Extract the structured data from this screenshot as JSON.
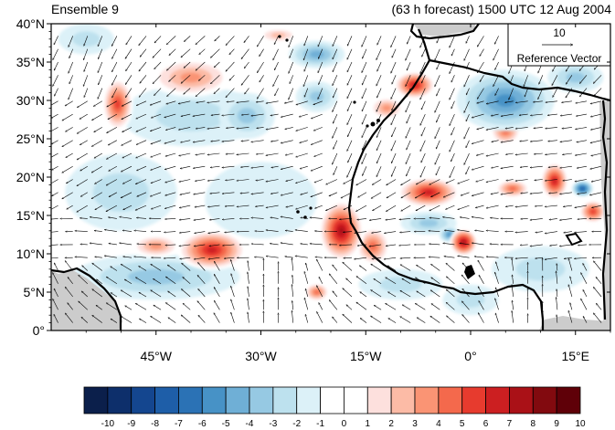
{
  "header": {
    "left_title": "Ensemble 9",
    "right_title": "(63 h forecast) 1500 UTC 12 Aug 2004"
  },
  "map": {
    "lon_range": [
      -60,
      20
    ],
    "lat_range": [
      0,
      40
    ],
    "lat_ticks": [
      {
        "value": 0,
        "label": "0°"
      },
      {
        "value": 5,
        "label": "5°N"
      },
      {
        "value": 10,
        "label": "10°N"
      },
      {
        "value": 15,
        "label": "15°N"
      },
      {
        "value": 20,
        "label": "20°N"
      },
      {
        "value": 25,
        "label": "25°N"
      },
      {
        "value": 30,
        "label": "30°N"
      },
      {
        "value": 35,
        "label": "35°N"
      },
      {
        "value": 40,
        "label": "40°N"
      }
    ],
    "lon_ticks": [
      {
        "value": -45,
        "label": "45°W"
      },
      {
        "value": -30,
        "label": "30°W"
      },
      {
        "value": -15,
        "label": "15°W"
      },
      {
        "value": 0,
        "label": "0°"
      },
      {
        "value": 15,
        "label": "15°E"
      }
    ],
    "reference_vector": {
      "magnitude": "10",
      "label": "Reference Vector"
    },
    "colors": {
      "land_masked": "#cccccc",
      "coast": "#000000",
      "vector": "#000000"
    }
  },
  "colorbar": {
    "levels": [
      "-10",
      "-9",
      "-8",
      "-7",
      "-6",
      "-5",
      "-4",
      "-3",
      "-2",
      "-1",
      "0",
      "1",
      "2",
      "3",
      "4",
      "5",
      "6",
      "7",
      "8",
      "9",
      "10"
    ],
    "colors": [
      "#0b1f4b",
      "#0d2f6b",
      "#14468f",
      "#1e5ea8",
      "#2b72b5",
      "#4792c6",
      "#6fafd6",
      "#96c9e3",
      "#bde1ee",
      "#dcf1f8",
      "#ffffff",
      "#ffffff",
      "#fde0dd",
      "#fcbba6",
      "#fa9474",
      "#f4694c",
      "#e73b2e",
      "#cc1f21",
      "#aa1117",
      "#820a0f",
      "#5f0008"
    ]
  },
  "field": {
    "blobs": [
      {
        "lon": -50.5,
        "lat": 29.5,
        "rlon": 2.2,
        "rlat": 3.5,
        "v": 6
      },
      {
        "lon": -40,
        "lat": 33,
        "rlon": 6,
        "rlat": 2.5,
        "v": 4
      },
      {
        "lon": -37,
        "lat": 10.5,
        "rlon": 5,
        "rlat": 2.6,
        "v": 7
      },
      {
        "lon": -45,
        "lat": 11,
        "rlon": 3.5,
        "rlat": 1.5,
        "v": 4
      },
      {
        "lon": -18.5,
        "lat": 13,
        "rlon": 3.2,
        "rlat": 4,
        "v": 8
      },
      {
        "lon": -14,
        "lat": 11,
        "rlon": 2.5,
        "rlat": 2.5,
        "v": 5
      },
      {
        "lon": -22,
        "lat": 5,
        "rlon": 1.8,
        "rlat": 1.2,
        "v": 5
      },
      {
        "lon": -8,
        "lat": 32,
        "rlon": 3,
        "rlat": 1.8,
        "v": 7
      },
      {
        "lon": -12,
        "lat": 29,
        "rlon": 2.5,
        "rlat": 1.5,
        "v": 4
      },
      {
        "lon": -6,
        "lat": 18,
        "rlon": 4.5,
        "rlat": 2,
        "v": 7
      },
      {
        "lon": -1,
        "lat": 11.5,
        "rlon": 2,
        "rlat": 1.8,
        "v": 8
      },
      {
        "lon": 5,
        "lat": 26,
        "rlon": 2.2,
        "rlat": 1.8,
        "v": 5
      },
      {
        "lon": 6,
        "lat": 18.5,
        "rlon": 2.5,
        "rlat": 1.2,
        "v": 5
      },
      {
        "lon": 12,
        "lat": 19.5,
        "rlon": 2,
        "rlat": 2.5,
        "v": 7
      },
      {
        "lon": 17.5,
        "lat": 15.5,
        "rlon": 2,
        "rlat": 1.5,
        "v": 6
      },
      {
        "lon": -27.5,
        "lat": 38.5,
        "rlon": 3,
        "rlat": 1,
        "v": 3
      },
      {
        "lon": 5,
        "lat": 30,
        "rlon": 7,
        "rlat": 4,
        "v": -5
      },
      {
        "lon": -22,
        "lat": 36,
        "rlon": 4,
        "rlat": 1.8,
        "v": -4
      },
      {
        "lon": -40,
        "lat": 28,
        "rlon": 10,
        "rlat": 4,
        "v": -2
      },
      {
        "lon": -32,
        "lat": 28,
        "rlon": 4,
        "rlat": 3,
        "v": -3
      },
      {
        "lon": -22,
        "lat": 30.5,
        "rlon": 3,
        "rlat": 2,
        "v": -3
      },
      {
        "lon": -45,
        "lat": 7,
        "rlon": 12,
        "rlat": 3,
        "v": -3
      },
      {
        "lon": -50,
        "lat": 18,
        "rlon": 8,
        "rlat": 5,
        "v": -2
      },
      {
        "lon": -6,
        "lat": 14,
        "rlon": 4,
        "rlat": 1.5,
        "v": -3
      },
      {
        "lon": -3,
        "lat": 12.5,
        "rlon": 1.5,
        "rlat": 1,
        "v": -5
      },
      {
        "lon": 16,
        "lat": 18.5,
        "rlon": 1.5,
        "rlat": 1,
        "v": -7
      },
      {
        "lon": 10,
        "lat": 8,
        "rlon": 7,
        "rlat": 3,
        "v": -2
      },
      {
        "lon": -10,
        "lat": 6,
        "rlon": 6,
        "rlat": 2,
        "v": -2
      },
      {
        "lon": -30,
        "lat": 17,
        "rlon": 8,
        "rlat": 5,
        "v": -1.5
      },
      {
        "lon": 15,
        "lat": 33,
        "rlon": 4,
        "rlat": 2,
        "v": -3
      },
      {
        "lon": 0,
        "lat": 4,
        "rlon": 4,
        "rlat": 2,
        "v": -2
      },
      {
        "lon": -55,
        "lat": 38,
        "rlon": 4,
        "rlat": 2,
        "v": -2
      }
    ]
  }
}
